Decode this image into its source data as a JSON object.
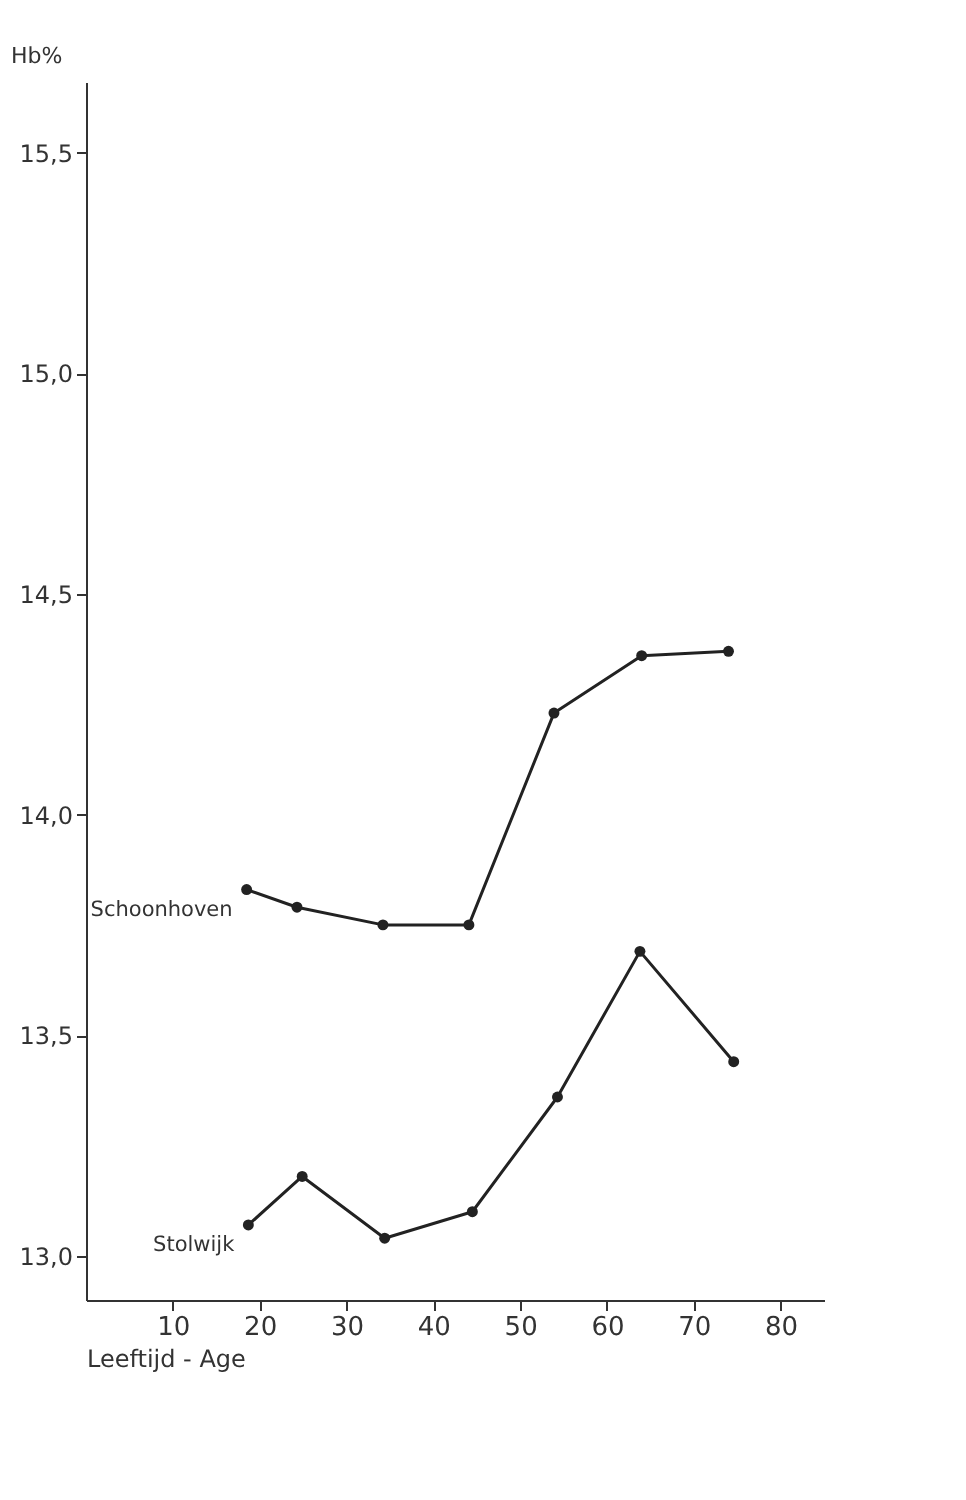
{
  "chart_data": {
    "type": "line",
    "xlabel": "Leeftijd - Age",
    "ylabel": "Hb%",
    "xlim": [
      0,
      85
    ],
    "ylim": [
      12.9,
      15.66
    ],
    "xticks": [
      10,
      20,
      30,
      40,
      50,
      60,
      70,
      80
    ],
    "yticks": [
      {
        "value": 13.0,
        "label": "13,0"
      },
      {
        "value": 13.5,
        "label": "13,5"
      },
      {
        "value": 14.0,
        "label": "14,0"
      },
      {
        "value": 14.5,
        "label": "14,5"
      },
      {
        "value": 15.0,
        "label": "15,0"
      },
      {
        "value": 15.5,
        "label": "15,5"
      }
    ],
    "series": [
      {
        "name": "Schoonhoven",
        "color": "#222222",
        "x": [
          18.5,
          24.3,
          34.2,
          44.1,
          53.9,
          64.0,
          74.0
        ],
        "values": [
          13.83,
          13.79,
          13.75,
          13.75,
          14.23,
          14.36,
          14.37
        ]
      },
      {
        "name": "Stolwijk",
        "color": "#222222",
        "x": [
          18.7,
          24.9,
          34.4,
          44.5,
          54.3,
          63.8,
          74.6
        ],
        "values": [
          13.07,
          13.18,
          13.04,
          13.1,
          13.36,
          13.69,
          13.44
        ]
      }
    ],
    "marker": "circle",
    "line_style": "solid",
    "grid": false,
    "legend": false
  }
}
